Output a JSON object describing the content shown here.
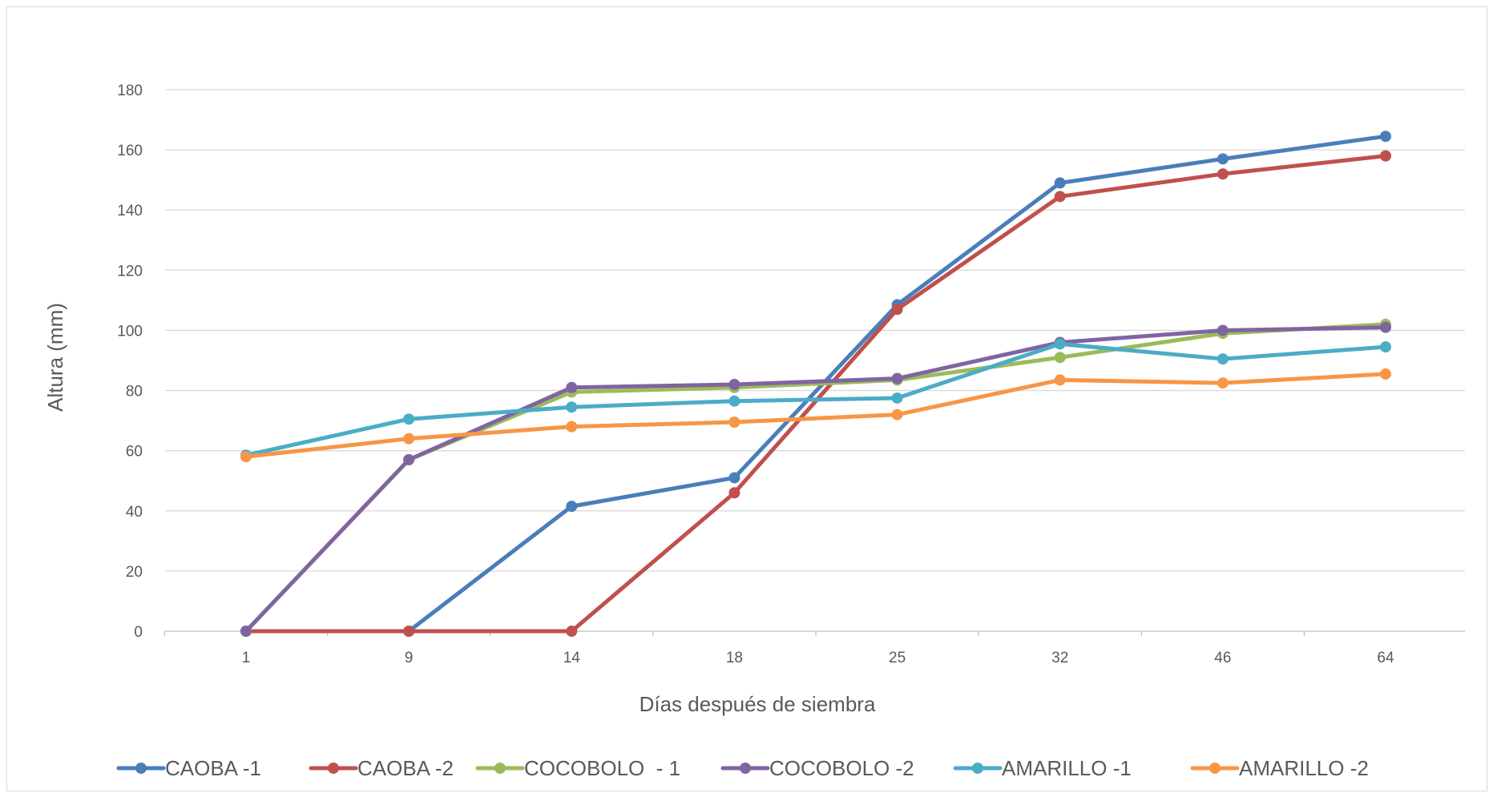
{
  "chart_data": {
    "type": "line",
    "title": "",
    "xlabel": "Días después de siembra",
    "ylabel": "Altura (mm)",
    "categories": [
      "1",
      "9",
      "14",
      "18",
      "25",
      "32",
      "46",
      "64"
    ],
    "ylim": [
      0,
      180
    ],
    "yticks": [
      0,
      20,
      40,
      60,
      80,
      100,
      120,
      140,
      160,
      180
    ],
    "grid": true,
    "legend_position": "bottom",
    "series": [
      {
        "name": "CAOBA -1",
        "color": "#4a7ebb",
        "values": [
          0,
          0,
          41.5,
          51,
          108.5,
          149,
          157,
          164.5
        ]
      },
      {
        "name": "CAOBA -2",
        "color": "#c0504d",
        "values": [
          0,
          0,
          0,
          46,
          107,
          144.5,
          152,
          158
        ]
      },
      {
        "name": "COCOBOLO  - 1",
        "color": "#9bbb59",
        "values": [
          0,
          57,
          79.5,
          81,
          83.5,
          91,
          99,
          102
        ]
      },
      {
        "name": "COCOBOLO -2",
        "color": "#8064a2",
        "values": [
          0,
          57,
          81,
          82,
          84,
          96,
          100,
          101
        ]
      },
      {
        "name": "AMARILLO -1",
        "color": "#4bacc6",
        "values": [
          58.5,
          70.5,
          74.5,
          76.5,
          77.5,
          95.5,
          90.5,
          94.5
        ]
      },
      {
        "name": "AMARILLO -2",
        "color": "#f79646",
        "values": [
          58,
          64,
          68,
          69.5,
          72,
          83.5,
          82.5,
          85.5
        ]
      }
    ]
  }
}
